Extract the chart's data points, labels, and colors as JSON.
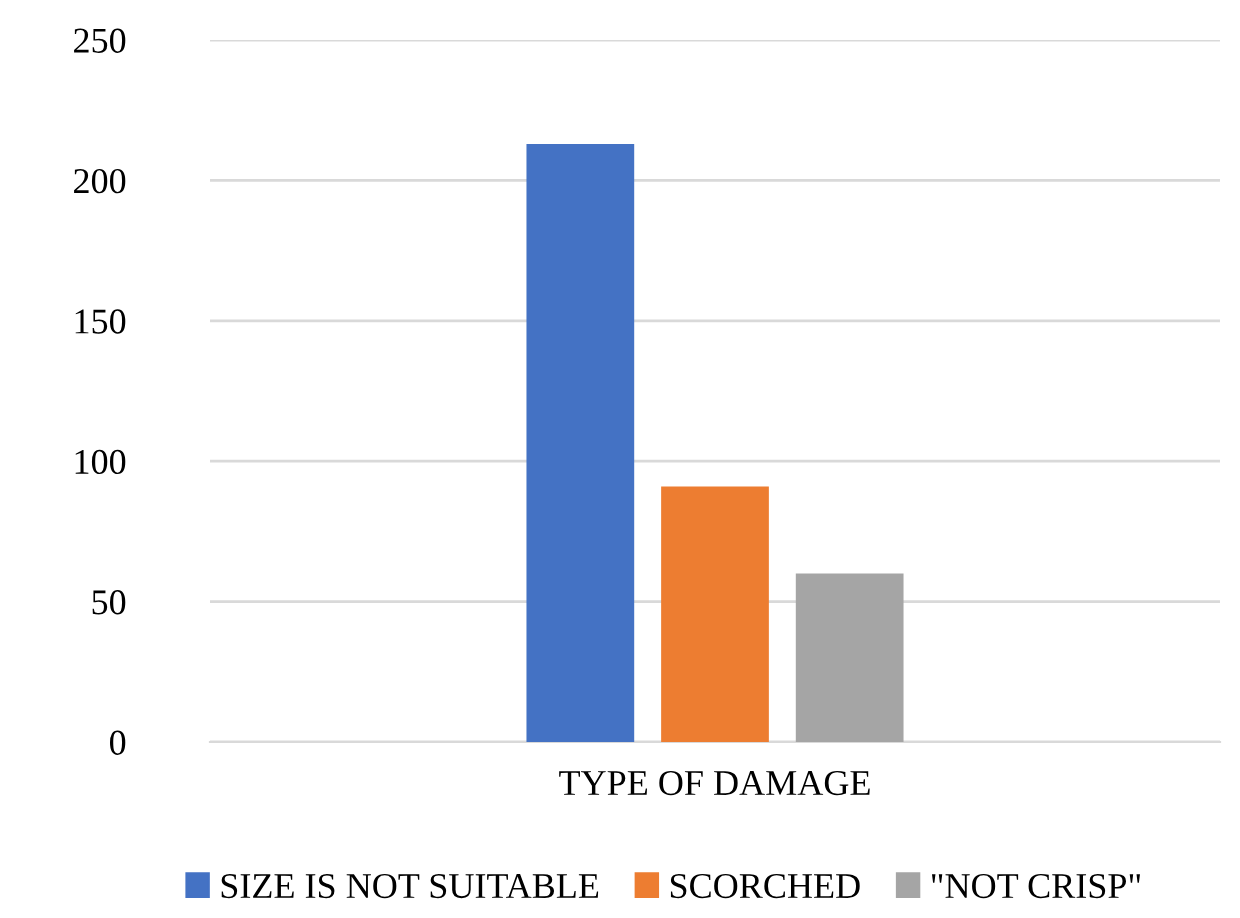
{
  "chart_data": {
    "type": "bar",
    "categories": [
      "TYPE OF DAMAGE"
    ],
    "series": [
      {
        "name": "SIZE IS NOT SUITABLE",
        "color": "#4472c4",
        "values": [
          213
        ]
      },
      {
        "name": "SCORCHED",
        "color": "#ed7d31",
        "values": [
          91
        ]
      },
      {
        "name": "\"NOT CRISP\"",
        "color": "#a5a5a5",
        "values": [
          60
        ]
      }
    ],
    "ylim": [
      0,
      250
    ],
    "yticks": [
      0,
      50,
      100,
      150,
      200,
      250
    ],
    "grid": "y",
    "legend": "bottom"
  }
}
